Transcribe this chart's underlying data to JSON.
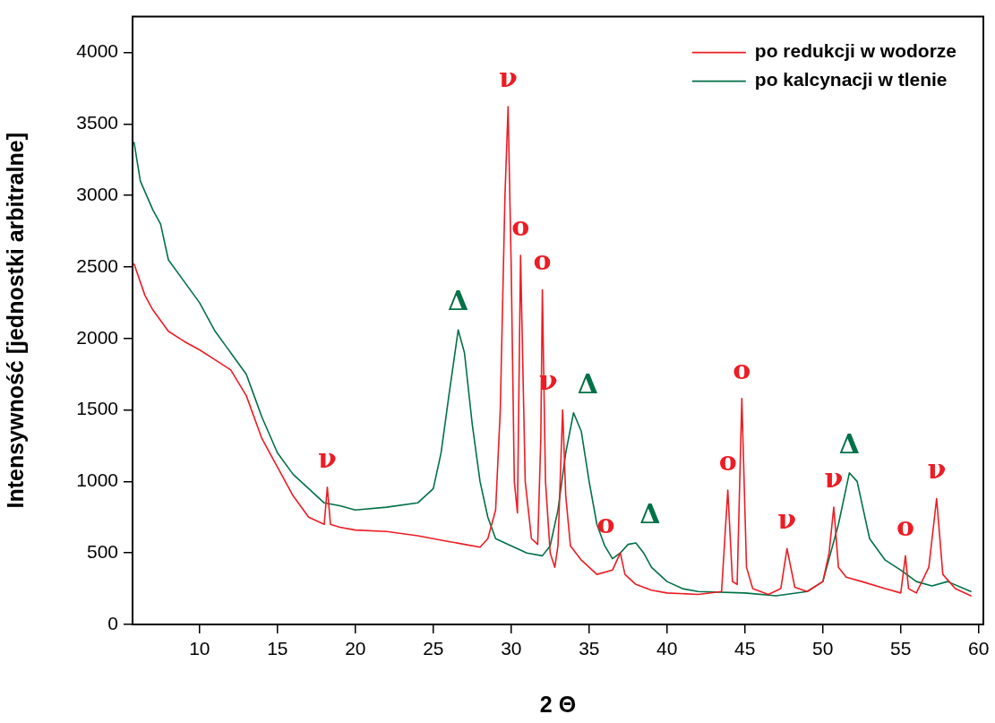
{
  "chart_data": {
    "type": "line",
    "xlabel": "2 Θ",
    "ylabel": "Intensywność [jednostki arbitralne]",
    "xlim": [
      5.7,
      60.3
    ],
    "ylim": [
      0,
      4250
    ],
    "xticks": [
      10,
      15,
      20,
      25,
      30,
      35,
      40,
      45,
      50,
      55,
      60
    ],
    "yticks": [
      0,
      500,
      1000,
      1500,
      2000,
      2500,
      3000,
      3500,
      4000
    ],
    "grid": false,
    "legend": "top right",
    "marker": "none",
    "line_style": "solid",
    "series": [
      {
        "name": "po redukcji w wodorze",
        "color": "#ed1c24",
        "x": [
          5.8,
          6.5,
          7,
          8,
          9,
          10,
          11,
          12,
          13,
          14,
          15,
          16,
          17,
          18,
          18.2,
          18.4,
          19,
          20,
          22,
          24,
          26,
          27,
          28,
          28.5,
          29,
          29.3,
          29.6,
          29.8,
          30,
          30.2,
          30.4,
          30.6,
          30.9,
          31.3,
          31.7,
          31.9,
          32,
          32.2,
          32.5,
          32.8,
          33,
          33.3,
          33.5,
          33.8,
          34.5,
          35.5,
          36.5,
          37,
          37.3,
          38,
          39,
          40,
          42,
          43.5,
          43.9,
          44.2,
          44.5,
          44.8,
          45.1,
          45.5,
          46.5,
          47.3,
          47.7,
          48.2,
          49,
          50,
          50.4,
          50.7,
          51,
          51.5,
          52.5,
          54,
          55,
          55.3,
          55.5,
          56,
          56.8,
          57.3,
          57.7,
          58.5,
          59.5
        ],
        "values": [
          2520,
          2300,
          2200,
          2050,
          1980,
          1920,
          1850,
          1780,
          1600,
          1300,
          1100,
          900,
          750,
          700,
          960,
          700,
          680,
          660,
          650,
          620,
          580,
          560,
          540,
          600,
          800,
          1500,
          3000,
          3620,
          2500,
          1000,
          780,
          2580,
          1000,
          600,
          560,
          1300,
          2340,
          1000,
          500,
          400,
          550,
          1500,
          900,
          550,
          450,
          350,
          380,
          500,
          350,
          280,
          240,
          220,
          210,
          230,
          940,
          300,
          280,
          1580,
          400,
          250,
          210,
          250,
          530,
          260,
          230,
          300,
          500,
          820,
          400,
          330,
          300,
          250,
          220,
          480,
          250,
          220,
          400,
          880,
          350,
          250,
          200
        ]
      },
      {
        "name": "po kalcynacji w tlenie",
        "color": "#007147",
        "x": [
          5.8,
          6.2,
          7,
          7.5,
          8,
          9,
          10,
          11,
          12,
          13,
          13.5,
          14,
          15,
          16,
          17,
          18,
          19,
          20,
          22,
          24,
          25,
          25.5,
          26,
          26.6,
          27,
          27.5,
          28,
          28.5,
          29,
          30,
          31,
          32,
          32.5,
          33,
          33.5,
          34,
          34.5,
          35,
          35.5,
          36,
          36.5,
          37,
          37.5,
          38,
          38.5,
          39,
          40,
          41,
          42,
          45,
          47,
          49,
          50,
          51,
          51.7,
          52.2,
          53,
          54,
          55,
          56,
          57,
          58,
          59.5
        ],
        "values": [
          3370,
          3100,
          2900,
          2800,
          2550,
          2400,
          2250,
          2050,
          1900,
          1750,
          1600,
          1450,
          1200,
          1050,
          950,
          850,
          830,
          800,
          820,
          850,
          950,
          1200,
          1600,
          2060,
          1900,
          1400,
          1000,
          750,
          600,
          550,
          500,
          480,
          550,
          800,
          1200,
          1480,
          1350,
          1000,
          700,
          550,
          460,
          500,
          560,
          570,
          500,
          400,
          300,
          250,
          230,
          220,
          200,
          230,
          300,
          700,
          1060,
          1000,
          600,
          450,
          380,
          300,
          270,
          300,
          230
        ]
      }
    ],
    "annotations": [
      {
        "text": "ν",
        "x": 18.2,
        "y": 960
      },
      {
        "text": "ν",
        "x": 29.8,
        "y": 3620
      },
      {
        "text": "o",
        "x": 30.6,
        "y": 2580
      },
      {
        "text": "o",
        "x": 32,
        "y": 2340
      },
      {
        "text": "ν",
        "x": 33.3,
        "y": 1500
      },
      {
        "text": "Δ",
        "x": 26.6,
        "y": 2060
      },
      {
        "text": "Δ",
        "x": 34,
        "y": 1480
      },
      {
        "text": "Δ",
        "x": 38,
        "y": 570
      },
      {
        "text": "Δ",
        "x": 51.7,
        "y": 1060
      },
      {
        "text": "o",
        "x": 37,
        "y": 500
      },
      {
        "text": "o",
        "x": 43.9,
        "y": 940
      },
      {
        "text": "o",
        "x": 44.8,
        "y": 1580
      },
      {
        "text": "o",
        "x": 55.3,
        "y": 480
      },
      {
        "text": "ν",
        "x": 47.7,
        "y": 530
      },
      {
        "text": "ν",
        "x": 50.7,
        "y": 820
      },
      {
        "text": "ν",
        "x": 57.3,
        "y": 880
      }
    ]
  }
}
